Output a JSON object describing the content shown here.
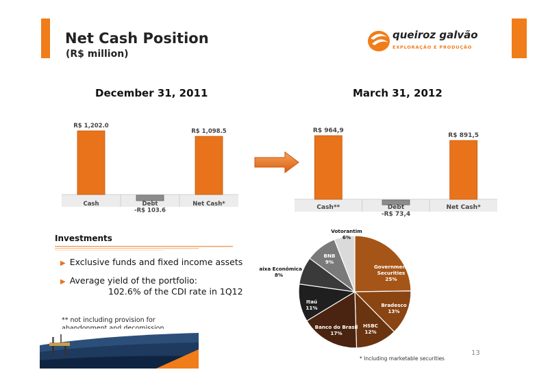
{
  "header": {
    "title": "Net Cash Position",
    "subtitle": "(R$ million)",
    "logo_name": "queiroz galvão",
    "logo_tagline": "EXPLORAÇÃO E PRODUÇÃO",
    "accent_color": "#f07d1a"
  },
  "chart_data": [
    {
      "type": "bar",
      "title": "December 31, 2011",
      "categories": [
        "Cash",
        "Debt",
        "Net Cash*"
      ],
      "values": [
        1202.0,
        -103.6,
        1098.5
      ],
      "data_labels": [
        "R$ 1,202.0",
        "-R$ 103.6",
        "R$ 1,098.5"
      ],
      "colors": [
        "#e8731a",
        "#8c8c8c",
        "#e8731a"
      ]
    },
    {
      "type": "bar",
      "title": "March 31, 2012",
      "categories": [
        "Cash**",
        "Debt",
        "Net Cash*"
      ],
      "values": [
        964.9,
        -73.4,
        891.5
      ],
      "data_labels": [
        "R$ 964,9",
        "-R$ 73,4",
        "R$ 891,5"
      ],
      "colors": [
        "#e8731a",
        "#8c8c8c",
        "#e8731a"
      ]
    },
    {
      "type": "pie",
      "slices": [
        {
          "label": "Government Securities",
          "value": 25,
          "pct": "25%",
          "color": "#a65518"
        },
        {
          "label": "Bradesco",
          "value": 13,
          "pct": "13%",
          "color": "#8a4513"
        },
        {
          "label": "HSBC",
          "value": 12,
          "pct": "12%",
          "color": "#6a3410"
        },
        {
          "label": "Banco do Brasil",
          "value": 17,
          "pct": "17%",
          "color": "#4a2410"
        },
        {
          "label": "Itaú",
          "value": 11,
          "pct": "11%",
          "color": "#1f1f1f"
        },
        {
          "label": "Caixa Econômica",
          "value": 8,
          "pct": "8%",
          "color": "#3a3a3a"
        },
        {
          "label": "BNB",
          "value": 9,
          "pct": "9%",
          "color": "#7a7a7a"
        },
        {
          "label": "Votorantim",
          "value": 6,
          "pct": "6%",
          "color": "#dadada"
        }
      ],
      "note": "* Including marketable securities"
    }
  ],
  "investments": {
    "title": "Investments",
    "bullet1": "Exclusive funds and fixed income assets",
    "bullet2_line1": "Average yield of the portfolio:",
    "bullet2_line2": "102.6% of the CDI rate in 1Q12"
  },
  "footnote": "** not including provision for abandonment and decomission",
  "page_number": "13"
}
